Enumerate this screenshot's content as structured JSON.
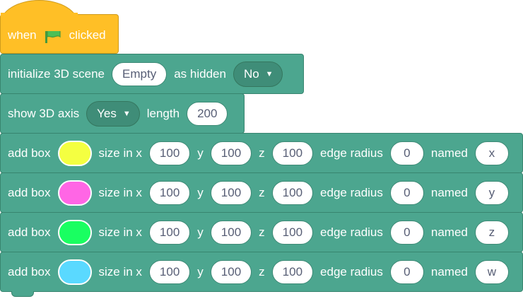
{
  "hat": {
    "when": "when",
    "clicked": "clicked",
    "icon": "green-flag-icon"
  },
  "init": {
    "label": "initialize 3D scene",
    "scene": "Empty",
    "as_hidden": "as hidden",
    "hidden": "No"
  },
  "axis": {
    "label": "show 3D axis",
    "value": "Yes",
    "length_label": "length",
    "length": "200"
  },
  "boxes": [
    {
      "add": "add box",
      "color": "#f4ff41",
      "size": "size in x",
      "x": "100",
      "y_label": "y",
      "y": "100",
      "z_label": "z",
      "z": "100",
      "edge": "edge radius",
      "radius": "0",
      "named": "named",
      "name": "x"
    },
    {
      "add": "add box",
      "color": "#ff66e5",
      "size": "size in x",
      "x": "100",
      "y_label": "y",
      "y": "100",
      "z_label": "z",
      "z": "100",
      "edge": "edge radius",
      "radius": "0",
      "named": "named",
      "name": "y"
    },
    {
      "add": "add box",
      "color": "#19ff61",
      "size": "size in x",
      "x": "100",
      "y_label": "y",
      "y": "100",
      "z_label": "z",
      "z": "100",
      "edge": "edge radius",
      "radius": "0",
      "named": "named",
      "name": "z"
    },
    {
      "add": "add box",
      "color": "#5ad9ff",
      "size": "size in x",
      "x": "100",
      "y_label": "y",
      "y": "100",
      "z_label": "z",
      "z": "100",
      "edge": "edge radius",
      "radius": "0",
      "named": "named",
      "name": "w"
    }
  ]
}
